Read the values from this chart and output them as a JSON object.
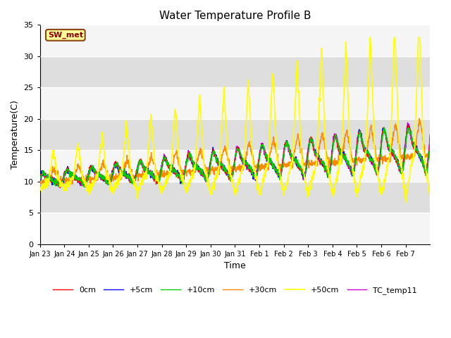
{
  "title": "Water Temperature Profile B",
  "xlabel": "Time",
  "ylabel": "Temperature(C)",
  "ylim": [
    0,
    35
  ],
  "yticks": [
    0,
    5,
    10,
    15,
    20,
    25,
    30,
    35
  ],
  "background_color": "#ffffff",
  "plot_bg_color": "#ebebeb",
  "band_color_light": "#f5f5f5",
  "band_color_dark": "#dedede",
  "annotation_text": "SW_met",
  "annotation_bg": "#ffff99",
  "annotation_border": "#8B4513",
  "annotation_text_color": "#8B0000",
  "legend_entries": [
    "0cm",
    "+5cm",
    "+10cm",
    "+30cm",
    "+50cm",
    "TC_temp11"
  ],
  "line_colors": [
    "#ff0000",
    "#0000ff",
    "#00cc00",
    "#ff8800",
    "#ffff00",
    "#cc00cc"
  ],
  "line_widths": [
    1.0,
    1.0,
    1.0,
    1.0,
    1.2,
    1.0
  ],
  "x_tick_labels": [
    "Jan 23",
    "Jan 24",
    "Jan 25",
    "Jan 26",
    "Jan 27",
    "Jan 28",
    "Jan 29",
    "Jan 30",
    "Jan 31",
    "Feb 1",
    "Feb 2",
    "Feb 3",
    "Feb 4",
    "Feb 5",
    "Feb 6",
    "Feb 7"
  ],
  "n_days": 16,
  "pts_per_day": 96
}
